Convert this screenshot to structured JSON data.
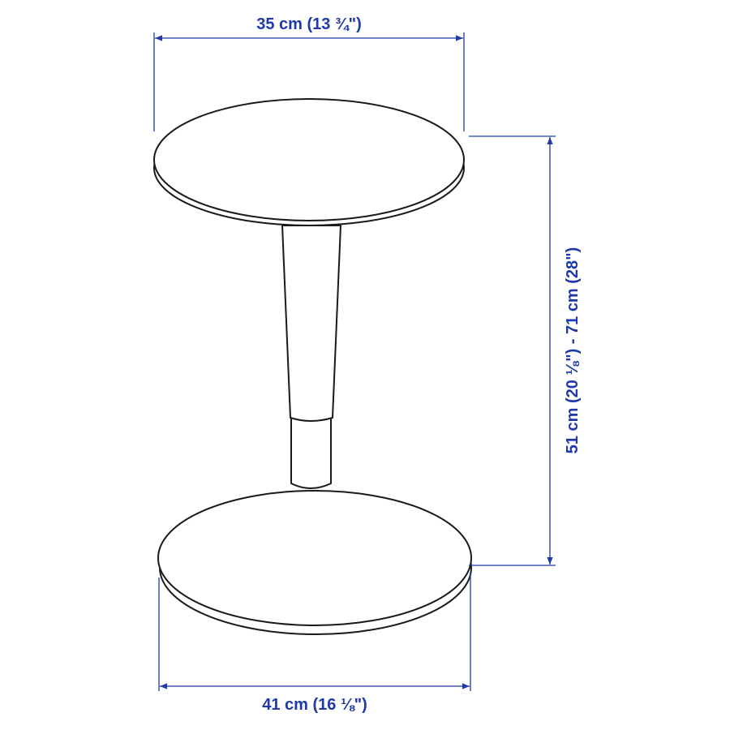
{
  "dimensions": {
    "top_width": "35 cm (13 ¾\")",
    "height": "51 cm (20 ⅛\") - 71 cm (28\")",
    "base_width": "41 cm (16 ⅛\")"
  },
  "colors": {
    "dimension": "#1f39a8",
    "outline": "#1a1a1a",
    "fill": "#ffffff"
  }
}
